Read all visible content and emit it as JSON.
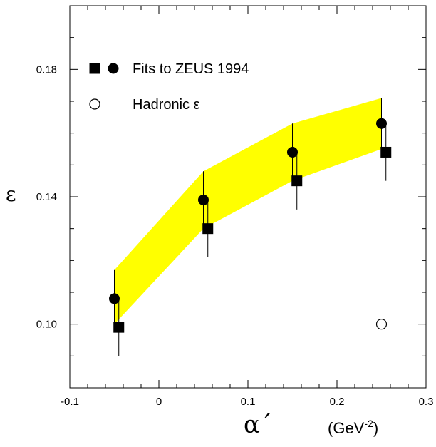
{
  "chart_data": {
    "type": "scatter",
    "title": "",
    "xlabel": "α´",
    "xunit": "(GeV",
    "xunit_exp": "-2",
    "xunit_close": ")",
    "ylabel": "ε",
    "xlim": [
      -0.1,
      0.3
    ],
    "ylim": [
      0.08,
      0.2
    ],
    "x_ticks": [
      "-0.1",
      "0",
      "0.1",
      "0.2",
      "0.3"
    ],
    "x_tick_values": [
      -0.1,
      0,
      0.1,
      0.2,
      0.3
    ],
    "y_ticks": [
      "0.10",
      "0.14",
      "0.18"
    ],
    "y_tick_values": [
      0.1,
      0.14,
      0.18
    ],
    "band": {
      "color": "#ffff00",
      "x": [
        -0.05,
        0.05,
        0.15,
        0.25
      ],
      "upper": [
        0.117,
        0.148,
        0.163,
        0.171
      ],
      "lower": [
        0.1,
        0.13,
        0.145,
        0.155
      ]
    },
    "series": [
      {
        "marker": "circle-filled",
        "x": [
          -0.05,
          0.05,
          0.15,
          0.25
        ],
        "y": [
          0.108,
          0.139,
          0.154,
          0.163
        ],
        "err_up": [
          0.009,
          0.009,
          0.009,
          0.008
        ],
        "err_down": [
          0.009,
          0.009,
          0.009,
          0.008
        ]
      },
      {
        "marker": "square-filled",
        "x": [
          -0.045,
          0.055,
          0.155,
          0.255
        ],
        "y": [
          0.099,
          0.13,
          0.145,
          0.154
        ],
        "err_up": [
          0.009,
          0.009,
          0.009,
          0.009
        ],
        "err_down": [
          0.009,
          0.009,
          0.009,
          0.009
        ]
      },
      {
        "marker": "circle-open",
        "x": [
          0.25
        ],
        "y": [
          0.1
        ]
      }
    ],
    "legend": {
      "placement": "top-left",
      "entries": [
        {
          "markers": [
            "square-filled",
            "circle-filled"
          ],
          "label": "Fits to ZEUS 1994"
        },
        {
          "markers": [
            "circle-open"
          ],
          "label": "Hadronic ε"
        }
      ]
    }
  }
}
